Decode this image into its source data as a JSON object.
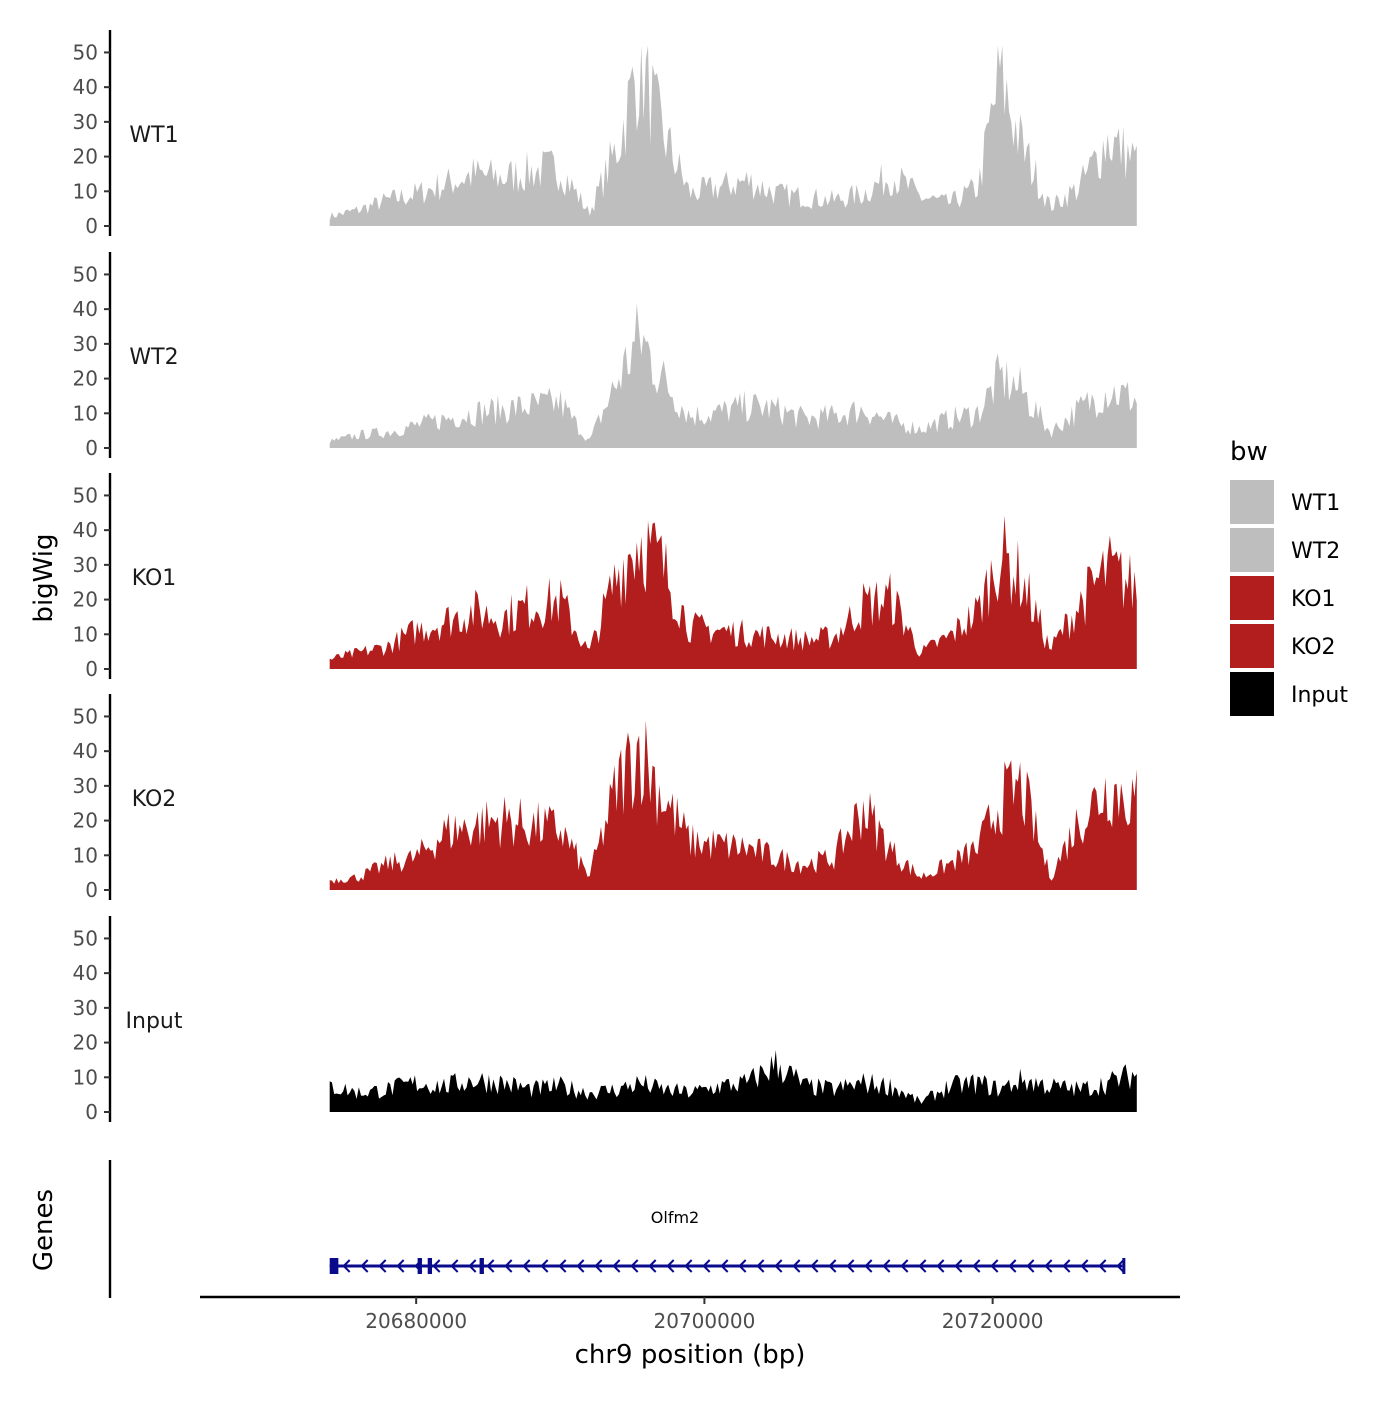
{
  "chart_data": {
    "type": "area",
    "title": "",
    "chromosome": "chr9",
    "xlabel": "chr9 position (bp)",
    "ylabel": "bigWig",
    "genes_label": "Genes",
    "xlim": [
      20665000,
      20733000
    ],
    "x_ticks": [
      20680000,
      20700000,
      20720000
    ],
    "x_tick_labels": [
      "20680000",
      "20700000",
      "20720000"
    ],
    "ylim": [
      0,
      52
    ],
    "y_ticks": [
      0,
      10,
      20,
      30,
      40,
      50
    ],
    "y_tick_labels": [
      "0",
      "10",
      "20",
      "30",
      "40",
      "50"
    ],
    "data_range": [
      20674000,
      20730000
    ],
    "legend": {
      "title": "bw",
      "placement": "right",
      "entries": [
        {
          "label": "WT1",
          "color": "#bebebe"
        },
        {
          "label": "WT2",
          "color": "#bebebe"
        },
        {
          "label": "KO1",
          "color": "#b21e1e"
        },
        {
          "label": "KO2",
          "color": "#b21e1e"
        },
        {
          "label": "Input",
          "color": "#000000"
        }
      ]
    },
    "series": [
      {
        "name": "WT1",
        "color": "#bebebe",
        "x": [
          20674000,
          20676000,
          20678000,
          20680000,
          20682000,
          20684000,
          20686000,
          20688000,
          20690000,
          20692000,
          20694000,
          20695500,
          20697000,
          20699000,
          20701000,
          20703000,
          20705000,
          20707000,
          20709000,
          20711000,
          20713000,
          20715000,
          20717000,
          20719000,
          20720500,
          20722000,
          20724000,
          20726000,
          20728000,
          20730000
        ],
        "values": [
          3,
          5,
          8,
          10,
          13,
          16,
          15,
          17,
          18,
          4,
          25,
          51,
          30,
          10,
          12,
          14,
          10,
          9,
          8,
          10,
          16,
          9,
          7,
          12,
          47,
          25,
          6,
          12,
          27,
          20
        ]
      },
      {
        "name": "WT2",
        "color": "#bebebe",
        "x": [
          20674000,
          20676000,
          20678000,
          20680000,
          20682000,
          20684000,
          20686000,
          20688000,
          20690000,
          20692000,
          20694000,
          20695500,
          20697000,
          20699000,
          20701000,
          20703000,
          20705000,
          20707000,
          20709000,
          20711000,
          20713000,
          20715000,
          20717000,
          20719000,
          20720500,
          20722000,
          20724000,
          20726000,
          20728000,
          20730000
        ],
        "values": [
          2,
          4,
          5,
          7,
          9,
          11,
          12,
          13,
          14,
          2,
          21,
          35,
          22,
          10,
          11,
          13,
          12,
          9,
          10,
          12,
          8,
          6,
          9,
          11,
          22,
          18,
          5,
          12,
          18,
          15
        ]
      },
      {
        "name": "KO1",
        "color": "#b21e1e",
        "x": [
          20674000,
          20676000,
          20678000,
          20680000,
          20682000,
          20684000,
          20686000,
          20688000,
          20690000,
          20692000,
          20694000,
          20695500,
          20697000,
          20699000,
          20701000,
          20703000,
          20705000,
          20707000,
          20709000,
          20711000,
          20713000,
          20715000,
          20717000,
          20719000,
          20720500,
          20722000,
          20724000,
          20726000,
          20728000,
          20730000
        ],
        "values": [
          3,
          5,
          7,
          12,
          15,
          18,
          16,
          20,
          21,
          5,
          30,
          41,
          33,
          13,
          12,
          11,
          10,
          9,
          10,
          20,
          22,
          5,
          10,
          18,
          36,
          28,
          6,
          20,
          31,
          25
        ]
      },
      {
        "name": "KO2",
        "color": "#b21e1e",
        "x": [
          20674000,
          20676000,
          20678000,
          20680000,
          20682000,
          20684000,
          20686000,
          20688000,
          20690000,
          20692000,
          20694000,
          20695500,
          20697000,
          20699000,
          20701000,
          20703000,
          20705000,
          20707000,
          20709000,
          20711000,
          20713000,
          20715000,
          20717000,
          20719000,
          20720500,
          20722000,
          20724000,
          20726000,
          20728000,
          20730000
        ],
        "values": [
          3,
          4,
          8,
          10,
          18,
          20,
          22,
          20,
          19,
          4,
          33,
          45,
          30,
          15,
          14,
          13,
          10,
          8,
          10,
          26,
          12,
          4,
          8,
          13,
          28,
          32,
          4,
          22,
          32,
          28
        ]
      },
      {
        "name": "Input",
        "color": "#000000",
        "x": [
          20674000,
          20676000,
          20678000,
          20680000,
          20682000,
          20684000,
          20686000,
          20688000,
          20690000,
          20692000,
          20694000,
          20695500,
          20697000,
          20699000,
          20701000,
          20703000,
          20705000,
          20707000,
          20709000,
          20711000,
          20713000,
          20715000,
          20717000,
          20719000,
          20720500,
          20722000,
          20724000,
          20726000,
          20728000,
          20730000
        ],
        "values": [
          8,
          6,
          7,
          9,
          8,
          10,
          9,
          7,
          8,
          6,
          7,
          9,
          7,
          6,
          8,
          9,
          15,
          8,
          7,
          9,
          8,
          3,
          8,
          9,
          7,
          10,
          8,
          7,
          9,
          12
        ]
      }
    ],
    "gene": {
      "name": "Olfm2",
      "strand": "-",
      "start": 20674000,
      "end": 20729000,
      "color": "#0a0a8c",
      "exons": [
        [
          20674000,
          20674600
        ],
        [
          20680100,
          20680400
        ],
        [
          20680800,
          20681100
        ],
        [
          20684400,
          20684700
        ],
        [
          20729000,
          20729200
        ]
      ]
    }
  }
}
